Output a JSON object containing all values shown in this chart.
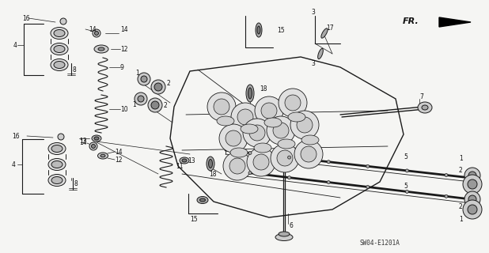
{
  "background_color": "#f5f5f3",
  "diagram_code": "SW04-E1201A",
  "fr_label": "FR.",
  "figsize": [
    6.18,
    3.2
  ],
  "dpi": 100,
  "line_color": "#1a1a1a",
  "text_color": "#111111",
  "font_size_labels": 5.5,
  "font_size_code": 5.5
}
